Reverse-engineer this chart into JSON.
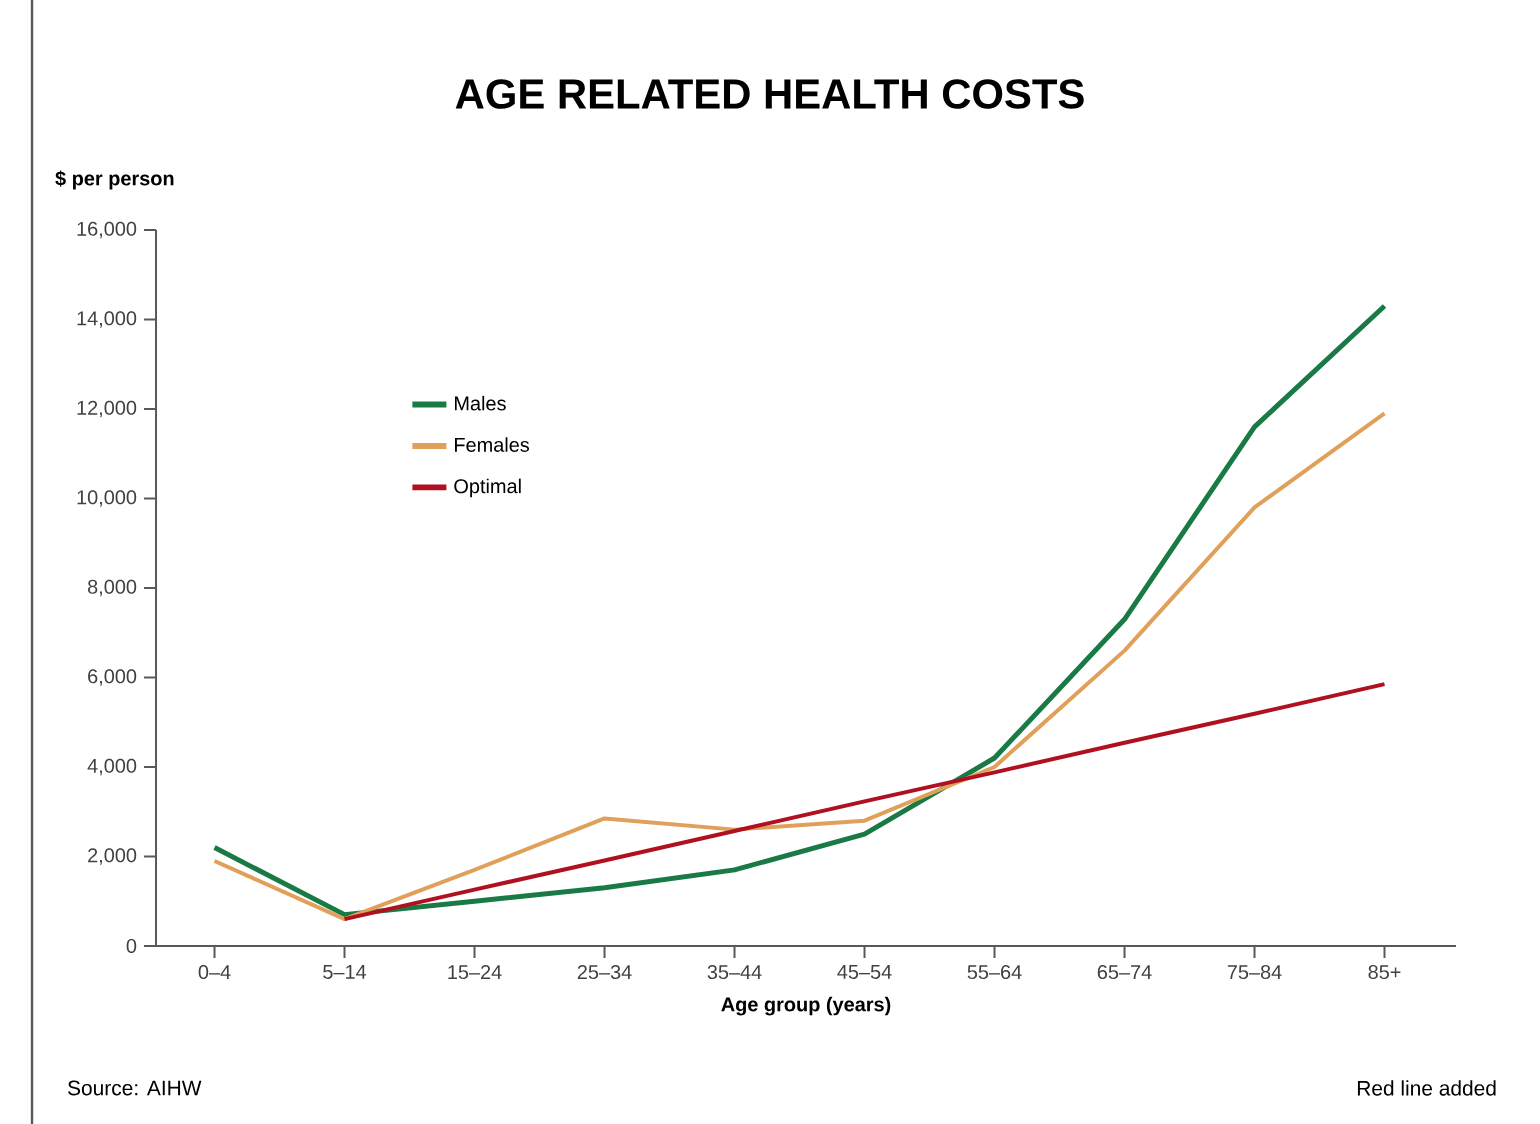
{
  "chart_data": {
    "type": "line",
    "title": "AGE RELATED HEALTH COSTS",
    "xlabel": "Age group (years)",
    "ylabel": "$ per person",
    "categories": [
      "0–4",
      "5–14",
      "15–24",
      "25–34",
      "35–44",
      "45–54",
      "55–64",
      "65–74",
      "75–84",
      "85+"
    ],
    "series": [
      {
        "name": "Males",
        "color": "#1a7a45",
        "values": [
          2200,
          700,
          1000,
          1300,
          1700,
          2500,
          4200,
          7300,
          11600,
          14300
        ]
      },
      {
        "name": "Females",
        "color": "#e0a05a",
        "values": [
          1900,
          600,
          1700,
          2850,
          2600,
          2800,
          4000,
          6600,
          9800,
          11900
        ]
      },
      {
        "name": "Optimal",
        "color": "#b01020",
        "values": [
          null,
          600,
          1260,
          1910,
          2570,
          3230,
          3880,
          4540,
          5190,
          5850
        ]
      }
    ],
    "ylim": [
      0,
      16000
    ],
    "yticks": [
      0,
      {
        "value": 2000,
        "label": "2,000"
      },
      {
        "value": 4000,
        "label": "4,000"
      },
      {
        "value": 6000,
        "label": "6,000"
      },
      {
        "value": 8000,
        "label": "8,000"
      },
      {
        "value": 10000,
        "label": "10,000"
      },
      {
        "value": 12000,
        "label": "12,000"
      },
      {
        "value": 14000,
        "label": "14,000"
      },
      {
        "value": 16000,
        "label": "16,000"
      }
    ],
    "legend": "top left",
    "grid": false,
    "marker": "none",
    "annotations": [
      "Source: AIHW",
      "Red line added"
    ]
  }
}
